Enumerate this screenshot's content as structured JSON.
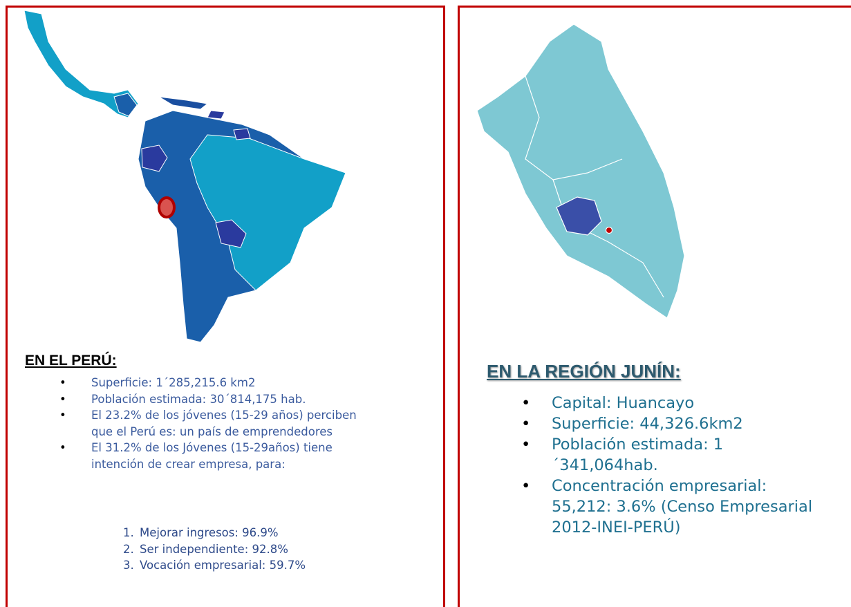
{
  "left": {
    "heading": "EN EL PERÚ:",
    "items": [
      "Superficie: 1´285,215.6 km2",
      "Población estimada: 30´814,175 hab.",
      "El 23.2%  de los jóvenes (15-29 años) perciben que el Perú es: un país de emprendedores",
      "El 31.2% de los Jóvenes (15-29años) tiene intención de crear empresa, para:"
    ],
    "sub_items": [
      {
        "number": "1.",
        "text": "Mejorar ingresos: 96.9%"
      },
      {
        "number": "2.",
        "text": "Ser independiente: 92.8%"
      },
      {
        "number": "3.",
        "text": "Vocación empresarial: 59.7%"
      }
    ]
  },
  "right": {
    "heading": "EN LA REGIÓN JUNÍN:",
    "items": [
      "Capital: Huancayo",
      "Superficie: 44,326.6km2",
      "Población estimada: 1´341,064hab.",
      "Concentración empresarial: 55,212: 3.6% (Censo Empresarial 2012-INEI-PERÚ)"
    ]
  }
}
